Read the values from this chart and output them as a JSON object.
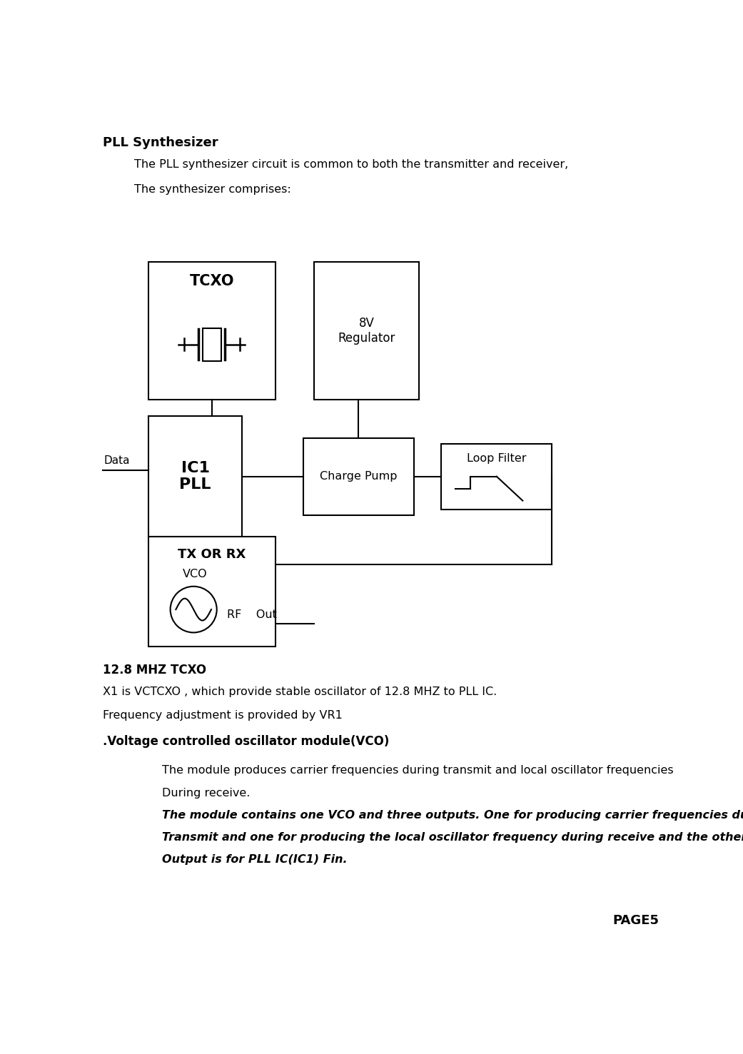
{
  "title": "PLL Synthesizer",
  "line1": "The PLL synthesizer circuit is common to both the transmitter and receiver,",
  "line2": "The synthesizer comprises:",
  "tcxo_label": "TCXO",
  "regulator_label": "8V\nRegulator",
  "ic1_label": "IC1\nPLL",
  "charge_pump_label": "Charge Pump",
  "loop_filter_label": "Loop Filter",
  "vco_box_label1": "TX OR RX",
  "vco_box_label2": "VCO",
  "data_label": "Data",
  "rf_out_label": "RF    Out",
  "tcxo_section_title": "12.8 MHZ TCXO",
  "tcxo_desc1": "X1 is VCTCXO , which provide stable oscillator of 12.8 MHZ to PLL IC.",
  "tcxo_desc2": "Frequency adjustment is provided by VR1",
  "vco_section_title": ".Voltage controlled oscillator module(VCO)",
  "vco_para1": "The module produces carrier frequencies during transmit and local oscillator frequencies",
  "vco_para2": "During receive.",
  "vco_para3": "The module contains one VCO and three outputs. One for producing carrier frequencies during",
  "vco_para4": "Transmit and one for producing the local oscillator frequency during receive and the other",
  "vco_para5": "Output is for PLL IC(IC1) Fin.",
  "page_label": "PAGE5",
  "figw": 10.41,
  "figh": 14.77,
  "dpi": 100
}
